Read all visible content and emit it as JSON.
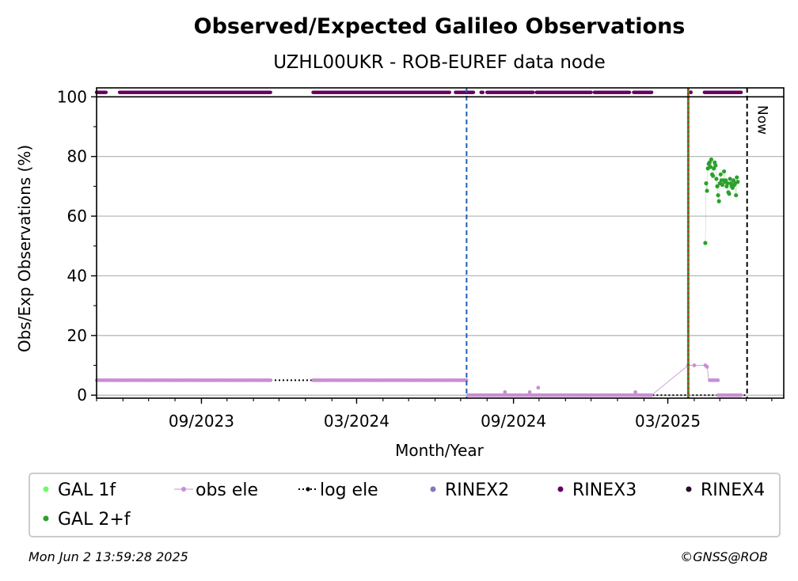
{
  "chart_data": {
    "type": "scatter",
    "title": "Observed/Expected Galileo Observations",
    "subtitle": "UZHL00UKR - ROB-EUREF data node",
    "xlabel": "Month/Year",
    "ylabel": "Obs/Exp Observations (%)",
    "xlim": [
      "2023-05-01",
      "2025-07-15"
    ],
    "ylim": [
      -1,
      103
    ],
    "x_ticks": [
      {
        "date": "2023-09-01",
        "label": "09/2023"
      },
      {
        "date": "2024-03-01",
        "label": "03/2024"
      },
      {
        "date": "2024-09-01",
        "label": "09/2024"
      },
      {
        "date": "2025-03-01",
        "label": "03/2025"
      }
    ],
    "y_ticks": [
      0,
      20,
      40,
      60,
      80,
      100
    ],
    "grid": "y-major",
    "legend_placement": "bottom",
    "annotations": {
      "now_label": "Now",
      "now_date": "2025-06-02",
      "blue_vline_date": "2024-07-08",
      "red_green_vline_date": "2025-03-25"
    },
    "series": [
      {
        "name": "RINEX3",
        "color": "#66005f",
        "y": 101.5,
        "ranges": [
          [
            "2023-05-01",
            "2023-05-12"
          ],
          [
            "2023-05-28",
            "2023-11-21"
          ],
          [
            "2024-01-10",
            "2024-06-18"
          ],
          [
            "2024-06-25",
            "2024-07-16"
          ],
          [
            "2024-07-25",
            "2024-07-27"
          ],
          [
            "2024-08-01",
            "2024-09-24"
          ],
          [
            "2024-09-28",
            "2024-12-01"
          ],
          [
            "2024-12-05",
            "2025-01-15"
          ],
          [
            "2025-01-20",
            "2025-02-10"
          ],
          [
            "2025-04-13",
            "2025-05-26"
          ]
        ],
        "points": [
          "2025-03-28"
        ]
      },
      {
        "name": "log ele",
        "color": "#000000",
        "style": "dotted",
        "segments": [
          {
            "from": "2023-05-01",
            "to": "2024-07-08",
            "y": 5
          },
          {
            "from": "2024-07-08",
            "to": "2025-06-02",
            "y": 0
          }
        ]
      },
      {
        "name": "obs ele",
        "color": "#c88fd2",
        "ranges": [
          {
            "from": "2023-05-01",
            "to": "2023-11-21",
            "y": 5
          },
          {
            "from": "2024-01-10",
            "to": "2024-07-08",
            "y": 5
          },
          {
            "from": "2024-07-10",
            "to": "2025-02-10",
            "y": 0
          },
          {
            "from": "2025-04-19",
            "to": "2025-04-29",
            "y": 5
          },
          {
            "from": "2025-04-29",
            "to": "2025-05-26",
            "y": 0
          }
        ],
        "points": [
          {
            "x": "2024-09-30",
            "y": 2.5
          },
          {
            "x": "2024-09-20",
            "y": 1
          },
          {
            "x": "2024-08-22",
            "y": 1
          },
          {
            "x": "2025-01-22",
            "y": 1
          },
          {
            "x": "2025-03-25",
            "y": 10
          },
          {
            "x": "2025-04-01",
            "y": 10
          },
          {
            "x": "2025-04-14",
            "y": 10
          },
          {
            "x": "2025-04-16",
            "y": 9.5
          }
        ],
        "connect": [
          {
            "x": "2025-02-10",
            "y": 0
          },
          {
            "x": "2025-03-25",
            "y": 10
          },
          {
            "x": "2025-04-16",
            "y": 10
          },
          {
            "x": "2025-04-18",
            "y": 5
          }
        ]
      },
      {
        "name": "GAL 2+f",
        "color": "#2ca02c",
        "points": [
          {
            "x": "2025-04-14",
            "y": 51
          },
          {
            "x": "2025-04-15",
            "y": 71
          },
          {
            "x": "2025-04-16",
            "y": 68.5
          },
          {
            "x": "2025-04-17",
            "y": 76
          },
          {
            "x": "2025-04-18",
            "y": 77.5
          },
          {
            "x": "2025-04-19",
            "y": 78
          },
          {
            "x": "2025-04-20",
            "y": 76.5
          },
          {
            "x": "2025-04-21",
            "y": 79
          },
          {
            "x": "2025-04-22",
            "y": 74
          },
          {
            "x": "2025-04-23",
            "y": 73.5
          },
          {
            "x": "2025-04-24",
            "y": 76
          },
          {
            "x": "2025-04-25",
            "y": 78
          },
          {
            "x": "2025-04-26",
            "y": 77
          },
          {
            "x": "2025-04-27",
            "y": 72.5
          },
          {
            "x": "2025-04-28",
            "y": 70
          },
          {
            "x": "2025-04-29",
            "y": 67
          },
          {
            "x": "2025-04-30",
            "y": 65
          },
          {
            "x": "2025-05-01",
            "y": 71
          },
          {
            "x": "2025-05-02",
            "y": 74
          },
          {
            "x": "2025-05-03",
            "y": 72
          },
          {
            "x": "2025-05-04",
            "y": 70.5
          },
          {
            "x": "2025-05-05",
            "y": 72
          },
          {
            "x": "2025-05-06",
            "y": 75
          },
          {
            "x": "2025-05-07",
            "y": 71.5
          },
          {
            "x": "2025-05-08",
            "y": 72
          },
          {
            "x": "2025-05-09",
            "y": 70
          },
          {
            "x": "2025-05-10",
            "y": 71
          },
          {
            "x": "2025-05-11",
            "y": 68
          },
          {
            "x": "2025-05-12",
            "y": 67.5
          },
          {
            "x": "2025-05-13",
            "y": 72.5
          },
          {
            "x": "2025-05-14",
            "y": 71
          },
          {
            "x": "2025-05-15",
            "y": 70
          },
          {
            "x": "2025-05-16",
            "y": 69.5
          },
          {
            "x": "2025-05-17",
            "y": 72
          },
          {
            "x": "2025-05-18",
            "y": 70.5
          },
          {
            "x": "2025-05-19",
            "y": 71
          },
          {
            "x": "2025-05-20",
            "y": 67
          },
          {
            "x": "2025-05-21",
            "y": 73
          },
          {
            "x": "2025-05-22",
            "y": 71.5
          }
        ]
      }
    ],
    "legend": [
      {
        "name": "GAL 1f",
        "color": "#66ff66",
        "marker": "dot"
      },
      {
        "name": "obs ele",
        "color": "#c88fd2",
        "marker": "line-dot"
      },
      {
        "name": "log ele",
        "color": "#000000",
        "marker": "dotted-line-dot"
      },
      {
        "name": "RINEX2",
        "color": "#8877bb",
        "marker": "dot"
      },
      {
        "name": "RINEX3",
        "color": "#66005f",
        "marker": "dot"
      },
      {
        "name": "RINEX4",
        "color": "#2a0a2a",
        "marker": "dot"
      },
      {
        "name": "GAL 2+f",
        "color": "#2ca02c",
        "marker": "dot"
      }
    ]
  },
  "footer": {
    "timestamp": "Mon Jun  2 13:59:28 2025",
    "copyright": "©GNSS@ROB"
  }
}
